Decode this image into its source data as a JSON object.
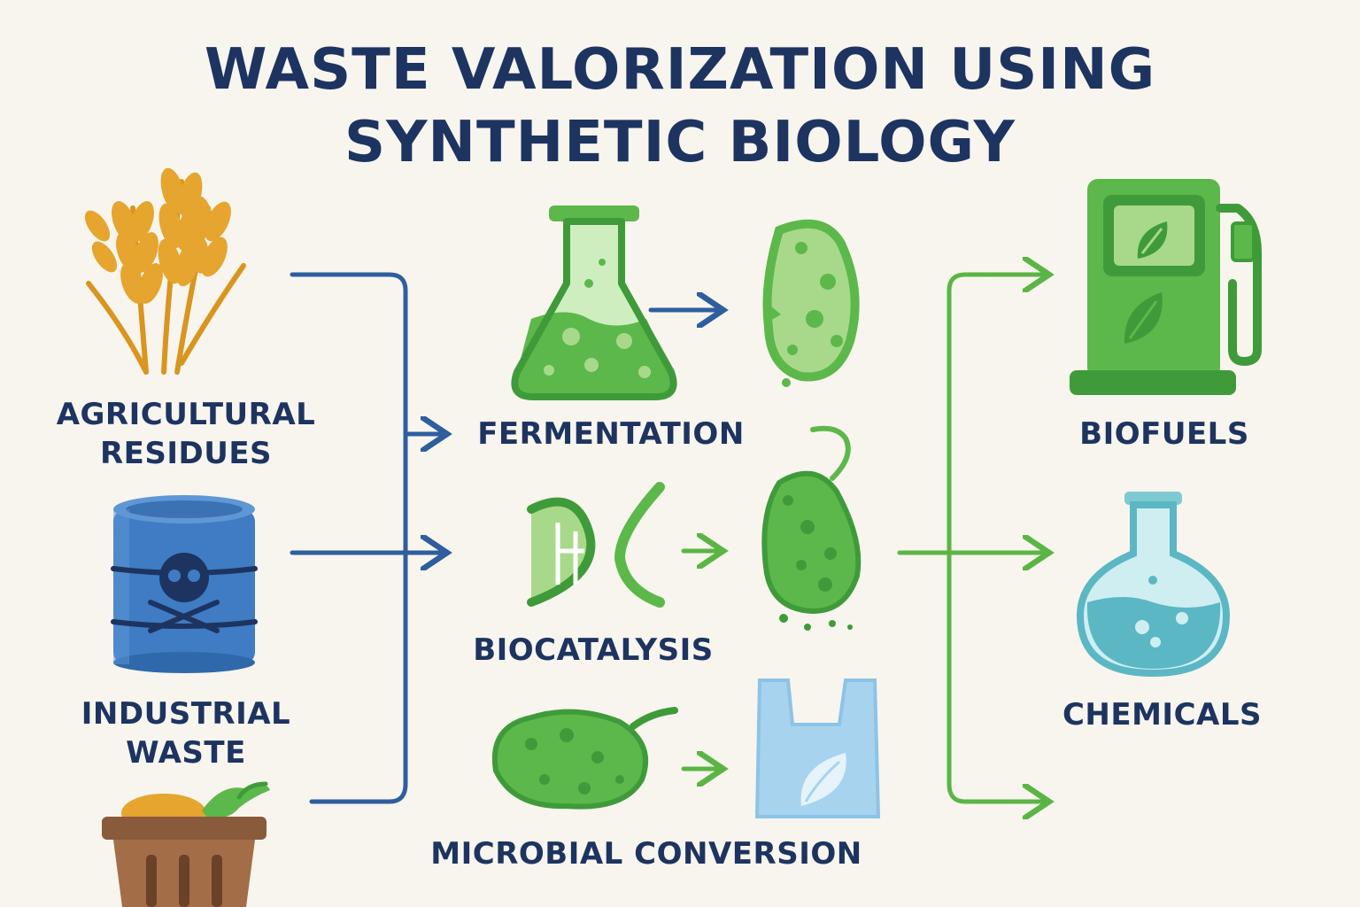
{
  "title": {
    "line1": "WASTE VALORIZATION USING",
    "line2": "SYNTHETIC BIOLOGY"
  },
  "inputs": {
    "agricultural": {
      "line1": "AGRICULTURAL",
      "line2": "RESIDUES",
      "icon": "wheat-icon"
    },
    "industrial": {
      "line1": "INDUSTRIAL",
      "line2": "WASTE",
      "icon": "toxic-barrel-icon"
    },
    "food": {
      "icon": "food-waste-bin-icon"
    }
  },
  "processes": {
    "fermentation": {
      "label": "FERMENTATION",
      "icon": "flask-icon"
    },
    "biocatalysis": {
      "label": "BIOCATALYSIS",
      "icon": "dna-icon"
    },
    "microbial": {
      "label": "MICROBIAL CONVERSION",
      "icon": "microbe-icon"
    }
  },
  "outputs": {
    "biofuels": {
      "label": "BIOFUELS",
      "icon": "fuel-pump-icon"
    },
    "chemicals": {
      "label": "CHEMICALS",
      "icon": "round-flask-icon"
    }
  },
  "colors": {
    "title": "#1d3461",
    "input_arrows": "#2e5e9e",
    "output_arrows": "#5bb545",
    "bio_green": "#5cb84a",
    "bio_green_dark": "#3f9b3a",
    "bio_green_light": "#a8d98a",
    "barrel_blue": "#3f7cc4",
    "wheat": "#e5a52e",
    "bin_brown": "#8a5a3c",
    "chem_teal": "#5bb7c4",
    "bag_blue": "#a7d3ef"
  }
}
